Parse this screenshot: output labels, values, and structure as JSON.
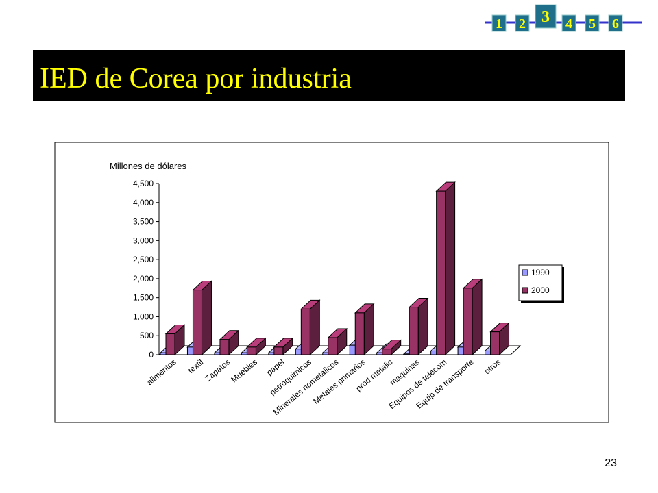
{
  "nav": {
    "items": [
      "1",
      "2",
      "3",
      "4",
      "5",
      "6"
    ]
  },
  "header": {
    "title": "IED de Corea por industria"
  },
  "page_number": "23",
  "chart_data": {
    "type": "bar3d",
    "y_label": "Millones de dólares",
    "categories": [
      "alimentos",
      "textil",
      "Zapatos",
      "Muebles",
      "papel",
      "petroquimicos",
      "Minerales nometalicos",
      "Metales primarios",
      "prod metalic",
      "maquinas",
      "Equipos de telecom",
      "Equip de transporte",
      "otros"
    ],
    "series": [
      {
        "name": "1990",
        "color": "#9999ff",
        "values": [
          50,
          200,
          50,
          50,
          50,
          150,
          50,
          250,
          50,
          20,
          100,
          200,
          100
        ]
      },
      {
        "name": "2000",
        "color": "#993366",
        "values": [
          550,
          1700,
          400,
          200,
          200,
          1200,
          450,
          1100,
          150,
          1250,
          4300,
          1750,
          600
        ]
      }
    ],
    "ylim": [
      0,
      4500
    ],
    "yticks": [
      0,
      500,
      {
        "value": 1000,
        "label": "1,000"
      },
      {
        "value": 1500,
        "label": "1,500"
      },
      {
        "value": 2000,
        "label": "2,000"
      },
      {
        "value": 2500,
        "label": "2,500"
      },
      {
        "value": 3000,
        "label": "3,000"
      },
      {
        "value": 3500,
        "label": "3,500"
      },
      {
        "value": 4000,
        "label": "4,000"
      },
      {
        "value": 4500,
        "label": "4,500"
      }
    ],
    "legend": "right"
  }
}
